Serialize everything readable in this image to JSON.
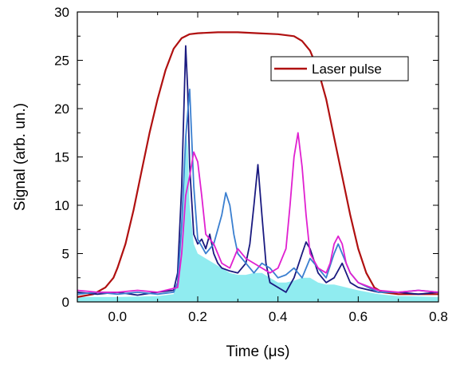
{
  "chart_data": {
    "type": "line",
    "xlabel": "Time (μs)",
    "ylabel": "Signal (arb. un.)",
    "xlim": [
      -0.1,
      0.8
    ],
    "ylim": [
      0,
      30
    ],
    "xticks": [
      0.0,
      0.2,
      0.4,
      0.6,
      0.8
    ],
    "xtick_labels": [
      "0.0",
      "0.2",
      "0.4",
      "0.6",
      "0.8"
    ],
    "yticks": [
      0,
      5,
      10,
      15,
      20,
      25,
      30
    ],
    "ytick_labels": [
      "0",
      "5",
      "10",
      "15",
      "20",
      "25",
      "30"
    ],
    "legend": {
      "position": "top-right",
      "entries": [
        {
          "label": "Laser pulse",
          "color": "#b01010"
        }
      ]
    },
    "series": [
      {
        "name": "Laser pulse",
        "color": "#b01010",
        "x": [
          -0.1,
          -0.06,
          -0.03,
          -0.01,
          0.0,
          0.02,
          0.04,
          0.06,
          0.08,
          0.1,
          0.12,
          0.14,
          0.16,
          0.18,
          0.2,
          0.25,
          0.3,
          0.35,
          0.4,
          0.44,
          0.46,
          0.48,
          0.5,
          0.52,
          0.54,
          0.56,
          0.58,
          0.6,
          0.62,
          0.64,
          0.66,
          0.7,
          0.75,
          0.8
        ],
        "y": [
          0.5,
          0.8,
          1.5,
          2.5,
          3.5,
          6.0,
          9.5,
          13.5,
          17.5,
          21.0,
          24.0,
          26.2,
          27.3,
          27.7,
          27.8,
          27.9,
          27.9,
          27.8,
          27.7,
          27.5,
          27.0,
          26.0,
          24.0,
          21.0,
          17.0,
          13.0,
          9.0,
          5.5,
          3.0,
          1.5,
          1.0,
          0.8,
          0.8,
          0.8
        ]
      },
      {
        "name": "",
        "color": "#1a1a80",
        "x": [
          -0.1,
          -0.05,
          0.0,
          0.05,
          0.1,
          0.14,
          0.15,
          0.16,
          0.17,
          0.175,
          0.18,
          0.19,
          0.2,
          0.21,
          0.22,
          0.23,
          0.24,
          0.25,
          0.26,
          0.28,
          0.3,
          0.32,
          0.33,
          0.34,
          0.35,
          0.36,
          0.37,
          0.38,
          0.4,
          0.42,
          0.44,
          0.46,
          0.47,
          0.48,
          0.5,
          0.52,
          0.54,
          0.56,
          0.58,
          0.6,
          0.65,
          0.7,
          0.75,
          0.8
        ],
        "y": [
          1.0,
          0.8,
          1.0,
          0.7,
          1.0,
          1.2,
          3.0,
          12.0,
          26.5,
          22.0,
          14.0,
          7.0,
          6.0,
          6.5,
          5.5,
          7.0,
          5.0,
          4.0,
          3.5,
          3.2,
          3.0,
          4.0,
          6.0,
          10.0,
          14.2,
          9.0,
          4.0,
          2.0,
          1.5,
          1.0,
          2.5,
          5.0,
          6.2,
          5.5,
          3.0,
          2.0,
          2.5,
          4.0,
          2.0,
          1.5,
          1.0,
          1.0,
          0.8,
          1.0
        ]
      },
      {
        "name": "",
        "color": "#3a7fd0",
        "x": [
          -0.1,
          -0.05,
          0.0,
          0.05,
          0.1,
          0.14,
          0.15,
          0.16,
          0.17,
          0.18,
          0.19,
          0.2,
          0.22,
          0.24,
          0.26,
          0.27,
          0.28,
          0.29,
          0.3,
          0.32,
          0.34,
          0.36,
          0.38,
          0.4,
          0.42,
          0.44,
          0.46,
          0.48,
          0.5,
          0.52,
          0.54,
          0.55,
          0.56,
          0.58,
          0.6,
          0.65,
          0.7,
          0.75,
          0.8
        ],
        "y": [
          0.8,
          1.0,
          0.8,
          1.0,
          0.8,
          1.0,
          2.0,
          8.0,
          17.0,
          22.0,
          12.0,
          6.5,
          5.0,
          6.0,
          9.0,
          11.3,
          10.0,
          7.0,
          5.0,
          4.0,
          3.0,
          4.0,
          3.5,
          2.5,
          2.8,
          3.5,
          2.5,
          4.5,
          3.5,
          2.5,
          5.0,
          6.0,
          5.0,
          3.0,
          2.0,
          1.0,
          1.0,
          1.2,
          1.0
        ]
      },
      {
        "name": "",
        "color": "#e020d0",
        "x": [
          -0.1,
          -0.05,
          0.0,
          0.05,
          0.1,
          0.15,
          0.16,
          0.17,
          0.18,
          0.19,
          0.2,
          0.21,
          0.22,
          0.24,
          0.26,
          0.28,
          0.3,
          0.32,
          0.34,
          0.36,
          0.38,
          0.4,
          0.42,
          0.43,
          0.44,
          0.45,
          0.46,
          0.47,
          0.48,
          0.5,
          0.52,
          0.53,
          0.54,
          0.55,
          0.56,
          0.57,
          0.58,
          0.6,
          0.65,
          0.7,
          0.75,
          0.8
        ],
        "y": [
          1.2,
          1.0,
          1.0,
          1.2,
          1.0,
          1.5,
          5.0,
          11.0,
          13.0,
          15.5,
          14.5,
          11.0,
          7.0,
          6.0,
          4.0,
          3.5,
          5.5,
          4.5,
          4.0,
          3.5,
          3.0,
          3.5,
          5.5,
          10.0,
          15.0,
          17.5,
          14.0,
          9.0,
          5.0,
          3.5,
          3.0,
          4.0,
          6.0,
          6.8,
          6.0,
          4.0,
          3.0,
          2.0,
          1.2,
          1.0,
          1.2,
          1.0
        ]
      }
    ],
    "fill_area": {
      "color": "#90ecf0",
      "x": [
        -0.1,
        0.0,
        0.1,
        0.14,
        0.15,
        0.16,
        0.17,
        0.175,
        0.18,
        0.19,
        0.2,
        0.22,
        0.24,
        0.26,
        0.28,
        0.3,
        0.32,
        0.34,
        0.36,
        0.38,
        0.4,
        0.42,
        0.44,
        0.46,
        0.48,
        0.5,
        0.52,
        0.54,
        0.56,
        0.58,
        0.6,
        0.65,
        0.7,
        0.8
      ],
      "y": [
        0.5,
        0.5,
        0.6,
        0.8,
        2.0,
        8.0,
        18.0,
        16.0,
        10.0,
        6.0,
        5.0,
        4.5,
        4.0,
        3.5,
        3.0,
        2.8,
        2.8,
        3.0,
        3.0,
        2.5,
        2.0,
        2.0,
        2.2,
        2.5,
        2.5,
        2.0,
        1.8,
        1.8,
        1.6,
        1.4,
        1.2,
        0.8,
        0.6,
        0.5
      ]
    }
  }
}
